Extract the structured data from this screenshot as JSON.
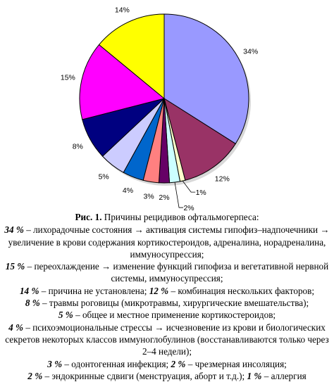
{
  "chart_data": {
    "type": "pie",
    "slices": [
      {
        "value": 34,
        "label": "34%",
        "color": "#9999ff"
      },
      {
        "value": 12,
        "label": "12%",
        "color": "#993366"
      },
      {
        "value": 1,
        "label": "1%",
        "color": "#ffffcc"
      },
      {
        "value": 2,
        "label": "2%",
        "color": "#ccffff"
      },
      {
        "value": 2,
        "label": "2%",
        "color": "#660066"
      },
      {
        "value": 3,
        "label": "3%",
        "color": "#ff8080"
      },
      {
        "value": 4,
        "label": "4%",
        "color": "#0066cc"
      },
      {
        "value": 5,
        "label": "5%",
        "color": "#ccccff"
      },
      {
        "value": 8,
        "label": "8%",
        "color": "#000080"
      },
      {
        "value": 15,
        "label": "15%",
        "color": "#ff00ff"
      },
      {
        "value": 14,
        "label": "14%",
        "color": "#ffff00"
      }
    ]
  },
  "caption": {
    "label": "Рис. 1.",
    "title": " Причины рецидивов офтальмогерпеса:",
    "items": [
      {
        "pct": "34 %",
        "text": " – лихорадочные состояния → активация системы гипофиз–надпочечники → увеличение в крови содержания кортикостероидов, адреналина, норадреналина, иммуносупрессия;"
      },
      {
        "pct": "15 %",
        "text": " – переохлаждение → изменение функций гипофиза и вегетативной нервной системы, иммуносупрессия;"
      },
      {
        "pct": "14 %",
        "text": " – причина не установлена; ",
        "pct2": "12 %",
        "text2": " – комбинация нескольких факторов;"
      },
      {
        "pct": "8 %",
        "text": " – травмы роговицы (микротравмы, хирургические вмешательства);"
      },
      {
        "pct": "5 %",
        "text": " – общее и местное применение кортикостероидов;"
      },
      {
        "pct": "4 %",
        "text": " – психоэмоциональные стрессы → исчезновение из крови и биологических секретов некоторых классов иммуноглобулинов (восстанавливаются только через 2–4 недели);"
      },
      {
        "pct": "3 %",
        "text": " – одонтогенная инфекция; ",
        "pct2": "2 %",
        "text2": " – чрезмерная инсоляция;"
      },
      {
        "pct": "2 %",
        "text": " – эндокринные сдвиги (менструация, аборт и т.д.); ",
        "pct2": "1 %",
        "text2": " – аллергия"
      }
    ]
  }
}
